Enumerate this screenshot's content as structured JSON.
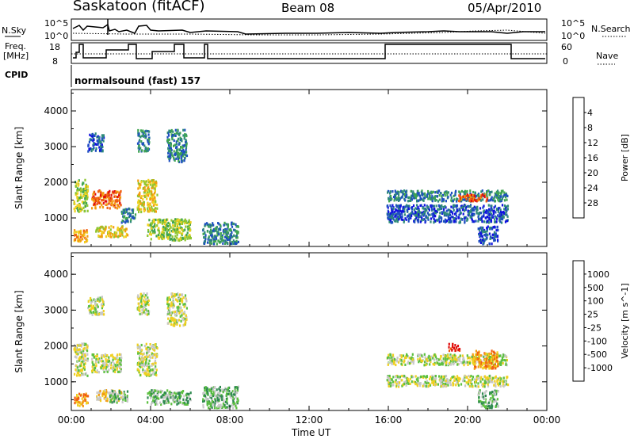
{
  "header": {
    "title": "Saskatoon (fitACF)",
    "beam": "Beam 08",
    "date": "05/Apr/2010"
  },
  "top_panels": {
    "nsky_label": "N.Sky",
    "nsearch_label": "N.Search",
    "noise_ticks_left": [
      "10^5",
      "10^0"
    ],
    "noise_ticks_right": [
      "10^5",
      "10^0"
    ],
    "freq_label_1": "Freq.",
    "freq_label_2": "[MHz]",
    "freq_ticks": [
      "18",
      "8"
    ],
    "nave_label": "Nave",
    "nave_ticks": [
      "60",
      "0"
    ],
    "cpid_label": "CPID",
    "cpid_text": "normalsound (fast) 157"
  },
  "chart_data": [
    {
      "type": "heatmap",
      "title": "",
      "xlabel": "Time UT",
      "ylabel": "Slant Range [km]",
      "x_ticks": [
        "00:00",
        "04:00",
        "08:00",
        "12:00",
        "16:00",
        "20:00",
        "00:00"
      ],
      "xlim": [
        0,
        24
      ],
      "y_ticks": [
        "1000",
        "2000",
        "3000",
        "4000"
      ],
      "ylim": [
        200,
        4600
      ],
      "colorbar": {
        "label": "Power [dB]",
        "ticks": [
          "4",
          "8",
          "12",
          "16",
          "20",
          "24",
          "28"
        ],
        "colors": [
          "#1010e0",
          "#1e50c0",
          "#2f8a7a",
          "#3fa550",
          "#8ec630",
          "#f0d020",
          "#f39c10",
          "#f05f10",
          "#e01010"
        ]
      },
      "regions": [
        {
          "t0": 0.1,
          "t1": 0.8,
          "r0": 1200,
          "r1": 2100,
          "level": 4
        },
        {
          "t0": 0.1,
          "t1": 0.8,
          "r0": 350,
          "r1": 700,
          "level": 6
        },
        {
          "t0": 0.8,
          "t1": 1.6,
          "r0": 2900,
          "r1": 3400,
          "level": 1
        },
        {
          "t0": 1.0,
          "t1": 2.5,
          "r0": 1300,
          "r1": 1800,
          "level": 7
        },
        {
          "t0": 1.2,
          "t1": 2.8,
          "r0": 500,
          "r1": 800,
          "level": 5
        },
        {
          "t0": 2.5,
          "t1": 3.2,
          "r0": 900,
          "r1": 1300,
          "level": 2
        },
        {
          "t0": 3.3,
          "t1": 3.9,
          "r0": 2900,
          "r1": 3500,
          "level": 2
        },
        {
          "t0": 3.3,
          "t1": 4.3,
          "r0": 1200,
          "r1": 2100,
          "level": 5
        },
        {
          "t0": 3.8,
          "t1": 6.0,
          "r0": 400,
          "r1": 1000,
          "level": 4
        },
        {
          "t0": 4.8,
          "t1": 5.8,
          "r0": 2600,
          "r1": 3500,
          "level": 2
        },
        {
          "t0": 6.6,
          "t1": 8.4,
          "r0": 300,
          "r1": 900,
          "level": 2
        },
        {
          "t0": 15.9,
          "t1": 22.0,
          "r0": 900,
          "r1": 1400,
          "level": 1
        },
        {
          "t0": 15.9,
          "t1": 22.0,
          "r0": 1500,
          "r1": 1800,
          "level": 2
        },
        {
          "t0": 19.5,
          "t1": 21.0,
          "r0": 1500,
          "r1": 1700,
          "level": 7
        },
        {
          "t0": 20.5,
          "t1": 21.5,
          "r0": 300,
          "r1": 800,
          "level": 1
        }
      ]
    },
    {
      "type": "heatmap",
      "title": "",
      "xlabel": "Time UT",
      "ylabel": "Slant Range [km]",
      "x_ticks": [
        "00:00",
        "04:00",
        "08:00",
        "12:00",
        "16:00",
        "20:00",
        "00:00"
      ],
      "xlim": [
        0,
        24
      ],
      "y_ticks": [
        "1000",
        "2000",
        "3000",
        "4000"
      ],
      "ylim": [
        200,
        4600
      ],
      "colorbar": {
        "label": "Velocity [m s^-1]",
        "ticks": [
          "1000",
          "500",
          "100",
          "25",
          "-25",
          "-100",
          "-500",
          "-1000"
        ],
        "colors": [
          "#2040c0",
          "#3c7dc8",
          "#2f8a50",
          "#5cc040",
          "#c8c8c8",
          "#f0d020",
          "#f39c10",
          "#f05f10",
          "#e01010"
        ]
      },
      "regions": [
        {
          "t0": 0.1,
          "t1": 0.8,
          "r0": 1200,
          "r1": 2100,
          "level": 4
        },
        {
          "t0": 0.1,
          "t1": 0.8,
          "r0": 350,
          "r1": 700,
          "level": 6
        },
        {
          "t0": 0.8,
          "t1": 1.6,
          "r0": 2900,
          "r1": 3400,
          "level": 4
        },
        {
          "t0": 1.0,
          "t1": 2.5,
          "r0": 1300,
          "r1": 1800,
          "level": 4
        },
        {
          "t0": 1.2,
          "t1": 2.5,
          "r0": 500,
          "r1": 800,
          "level": 5
        },
        {
          "t0": 1.9,
          "t1": 2.8,
          "r0": 450,
          "r1": 800,
          "level": 3
        },
        {
          "t0": 3.3,
          "t1": 3.9,
          "r0": 2900,
          "r1": 3500,
          "level": 4
        },
        {
          "t0": 3.3,
          "t1": 4.3,
          "r0": 1200,
          "r1": 2100,
          "level": 4
        },
        {
          "t0": 3.8,
          "t1": 6.0,
          "r0": 400,
          "r1": 800,
          "level": 3
        },
        {
          "t0": 4.8,
          "t1": 5.8,
          "r0": 2600,
          "r1": 3500,
          "level": 4
        },
        {
          "t0": 6.6,
          "t1": 8.4,
          "r0": 300,
          "r1": 900,
          "level": 3
        },
        {
          "t0": 15.9,
          "t1": 22.0,
          "r0": 1500,
          "r1": 1800,
          "level": 4
        },
        {
          "t0": 15.9,
          "t1": 22.0,
          "r0": 900,
          "r1": 1200,
          "level": 4
        },
        {
          "t0": 19.0,
          "t1": 19.6,
          "r0": 1900,
          "r1": 2100,
          "level": 8
        },
        {
          "t0": 20.2,
          "t1": 21.5,
          "r0": 1400,
          "r1": 1900,
          "level": 6
        },
        {
          "t0": 20.5,
          "t1": 21.5,
          "r0": 300,
          "r1": 800,
          "level": 3
        }
      ]
    }
  ]
}
